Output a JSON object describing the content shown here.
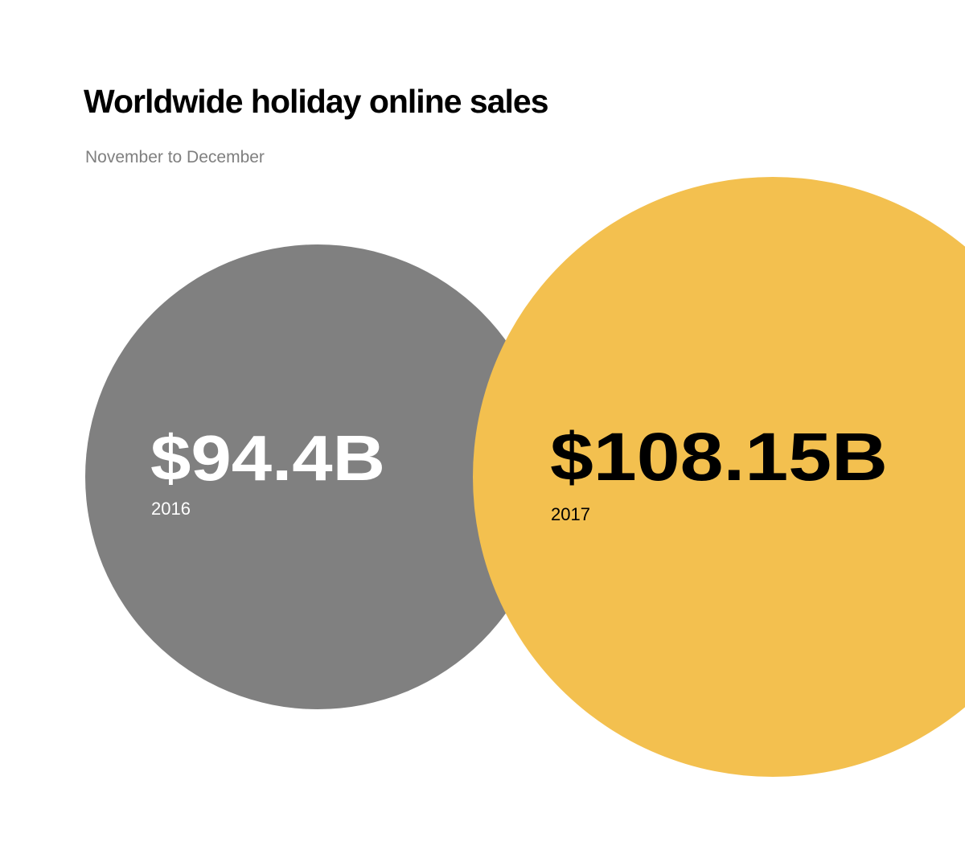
{
  "chart_data": {
    "type": "bubble",
    "title": "Worldwide holiday online sales",
    "subtitle": "November to December",
    "unit": "B",
    "currency": "$",
    "series": [
      {
        "year": "2016",
        "value": 94.4,
        "value_label": "$94.4B",
        "color": "#808080",
        "label_color": "#ffffff"
      },
      {
        "year": "2017",
        "value": 108.15,
        "value_label": "$108.15B",
        "color": "#f3c04f",
        "label_color": "#000000"
      }
    ]
  }
}
